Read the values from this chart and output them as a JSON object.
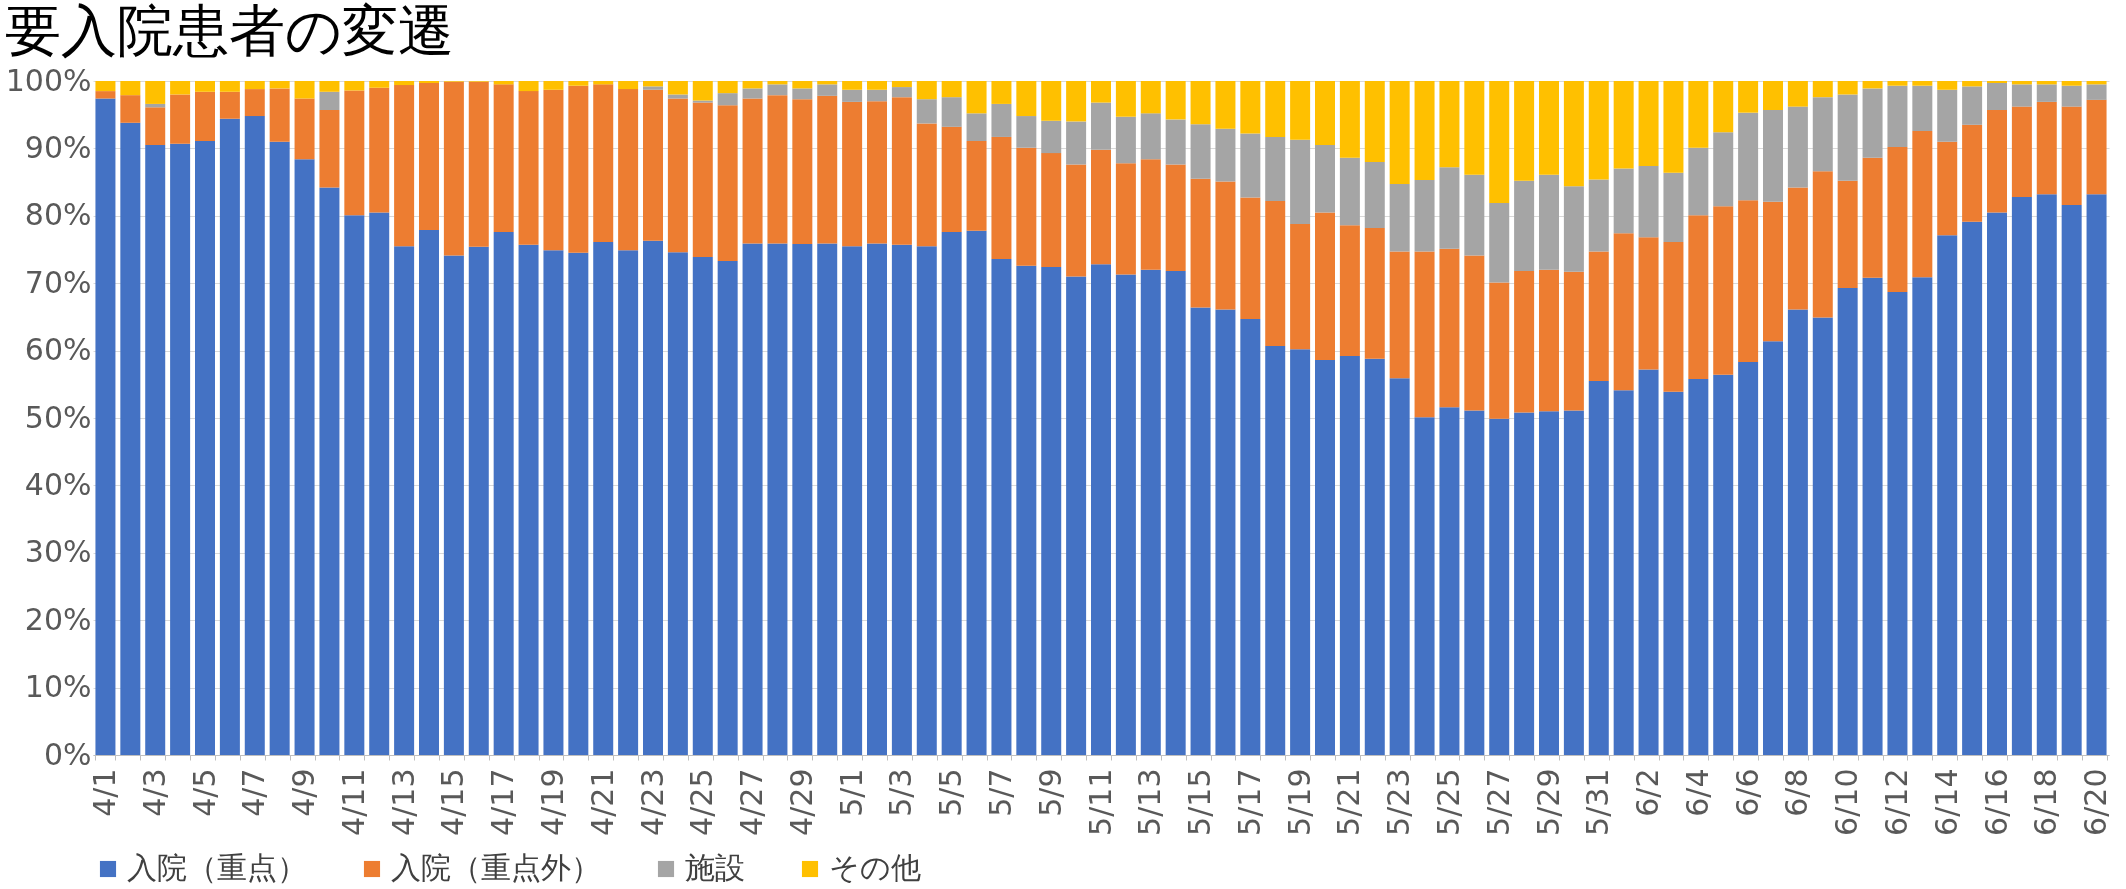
{
  "chart_data": {
    "type": "bar",
    "title": "要入院患者の変遷",
    "stacked": true,
    "categories": [
      "4/1",
      null,
      "4/3",
      null,
      "4/5",
      null,
      "4/7",
      null,
      "4/9",
      null,
      "4/11",
      null,
      "4/13",
      null,
      "4/15",
      null,
      "4/17",
      null,
      "4/19",
      null,
      "4/21",
      null,
      "4/23",
      null,
      "4/25",
      null,
      "4/27",
      null,
      "4/29",
      null,
      "5/1",
      null,
      "5/3",
      null,
      "5/5",
      null,
      "5/7",
      null,
      "5/9",
      null,
      "5/11",
      null,
      "5/13",
      null,
      "5/15",
      null,
      "5/17",
      null,
      "5/19",
      null,
      "5/21",
      null,
      "5/23",
      null,
      "5/25",
      null,
      "5/27",
      null,
      "5/29",
      null,
      "5/31",
      null,
      "6/2",
      null,
      "6/4",
      null,
      "6/6",
      null,
      "6/8",
      null,
      "6/10",
      null,
      "6/12",
      null,
      "6/14",
      null,
      "6/16",
      null,
      "6/18",
      null,
      "6/20"
    ],
    "series": [
      {
        "name": "入院（重点）",
        "color": "#4472c4",
        "values": [
          97.4,
          93.8,
          90.5,
          90.7,
          91.1,
          94.4,
          94.8,
          91.0,
          88.4,
          84.2,
          80.1,
          80.5,
          75.5,
          77.9,
          74.1,
          75.4,
          77.6,
          75.7,
          74.9,
          74.5,
          76.1,
          74.9,
          76.3,
          74.6,
          73.9,
          73.3,
          75.9,
          75.9,
          75.8,
          75.9,
          75.5,
          75.9,
          75.7,
          75.5,
          77.6,
          77.8,
          73.6,
          72.6,
          72.4,
          71.0,
          72.8,
          71.3,
          72.0,
          71.8,
          66.4,
          66.1,
          64.7,
          60.7,
          60.2,
          58.6,
          59.2,
          58.8,
          55.9,
          50.1,
          51.6,
          51.1,
          49.9,
          50.8,
          51.0,
          51.1,
          55.5,
          54.1,
          57.2,
          53.9,
          55.8,
          56.4,
          58.3,
          61.4,
          66.1,
          64.9,
          69.3,
          70.8,
          68.7,
          70.9,
          77.1,
          79.1,
          80.5,
          82.8,
          83.2,
          81.6,
          83.2
        ]
      },
      {
        "name": "入院（重点外）",
        "color": "#ed7d31",
        "values": [
          1.1,
          4.1,
          5.6,
          7.3,
          7.3,
          4.0,
          4.0,
          7.9,
          9.0,
          11.5,
          18.5,
          18.5,
          23.9,
          21.8,
          25.8,
          24.5,
          21.9,
          22.8,
          23.8,
          24.8,
          23.4,
          23.9,
          22.4,
          22.8,
          22.9,
          23.1,
          21.5,
          22.0,
          21.5,
          21.9,
          21.4,
          21.1,
          21.9,
          18.2,
          15.6,
          13.3,
          18.1,
          17.5,
          16.9,
          16.6,
          17.0,
          16.5,
          16.4,
          15.8,
          19.1,
          19.0,
          18.0,
          21.5,
          18.6,
          21.9,
          19.4,
          19.4,
          18.8,
          24.6,
          23.5,
          23.0,
          20.2,
          21.0,
          21.0,
          20.6,
          19.2,
          23.3,
          19.6,
          22.2,
          24.3,
          25.0,
          24.0,
          20.7,
          18.1,
          21.7,
          15.9,
          17.8,
          21.5,
          21.7,
          13.9,
          14.4,
          15.2,
          13.4,
          13.7,
          14.6,
          14.0
        ]
      },
      {
        "name": "施設",
        "color": "#a5a5a5",
        "values": [
          0,
          0,
          0.5,
          0,
          0,
          0,
          0,
          0,
          0,
          2.7,
          0,
          0,
          0,
          0,
          0,
          0,
          0,
          0,
          0,
          0,
          0,
          0,
          0.5,
          0.6,
          0.3,
          1.8,
          1.5,
          1.6,
          1.6,
          1.7,
          1.8,
          1.7,
          1.5,
          3.6,
          4.4,
          4.1,
          4.9,
          4.7,
          4.8,
          6.4,
          7.0,
          6.9,
          6.8,
          6.7,
          8.1,
          7.8,
          9.5,
          9.5,
          12.5,
          10.0,
          10.0,
          9.8,
          10.0,
          10.6,
          12.1,
          12.0,
          11.8,
          13.4,
          14.1,
          12.7,
          10.7,
          9.6,
          10.6,
          10.3,
          10.0,
          11.0,
          13.0,
          13.6,
          12.0,
          11.0,
          12.8,
          10.3,
          9.1,
          6.7,
          7.7,
          5.7,
          4.0,
          3.3,
          2.6,
          3.1,
          2.3
        ]
      },
      {
        "name": "その他",
        "color": "#ffc000",
        "values": [
          1.5,
          2.1,
          3.4,
          2.0,
          1.6,
          1.6,
          1.2,
          1.1,
          2.6,
          1.6,
          1.4,
          1.0,
          0.6,
          0.3,
          0.1,
          0.1,
          0.5,
          1.5,
          1.3,
          0.7,
          0.5,
          1.2,
          0.8,
          2.0,
          2.9,
          1.8,
          1.1,
          0.5,
          1.1,
          0.5,
          1.3,
          1.3,
          0.9,
          2.7,
          2.4,
          4.8,
          3.4,
          5.2,
          5.9,
          6.0,
          3.2,
          5.3,
          4.8,
          5.7,
          6.4,
          7.1,
          7.8,
          8.3,
          8.7,
          9.5,
          11.4,
          12.0,
          15.3,
          14.7,
          12.8,
          13.9,
          18.1,
          14.8,
          13.9,
          15.6,
          14.6,
          13.0,
          12.6,
          13.6,
          9.9,
          7.6,
          4.7,
          4.3,
          3.8,
          2.4,
          2.0,
          1.1,
          0.7,
          0.7,
          1.3,
          0.8,
          0.3,
          0.5,
          0.5,
          0.7,
          0.5
        ]
      }
    ],
    "ylim": [
      0,
      100
    ],
    "yticks": [
      {
        "value": 0,
        "label": "0%"
      },
      {
        "value": 10,
        "label": "10%"
      },
      {
        "value": 20,
        "label": "20%"
      },
      {
        "value": 30,
        "label": "30%"
      },
      {
        "value": 40,
        "label": "40%"
      },
      {
        "value": 50,
        "label": "50%"
      },
      {
        "value": 60,
        "label": "60%"
      },
      {
        "value": 70,
        "label": "70%"
      },
      {
        "value": 80,
        "label": "80%"
      },
      {
        "value": 90,
        "label": "90%"
      },
      {
        "value": 100,
        "label": "100%"
      }
    ],
    "grid": "y",
    "legend": "bottom"
  }
}
